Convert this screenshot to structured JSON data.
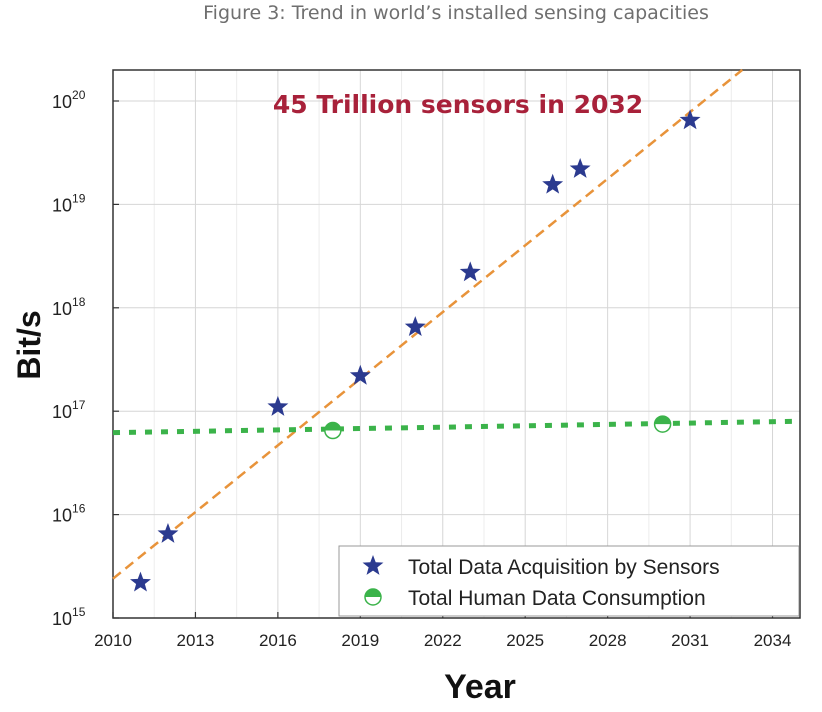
{
  "figure_title": "Figure 3: Trend in world’s installed sensing capacities",
  "chart_data": {
    "type": "scatter",
    "title": "",
    "xlabel": "Year",
    "ylabel": "Bit/s",
    "xlim": [
      2010,
      2035
    ],
    "ylim": [
      1000000000000000.0,
      2e+20
    ],
    "y_scale": "log",
    "grid": true,
    "x_ticks": [
      {
        "value": 2010,
        "label": "2010"
      },
      {
        "value": 2013,
        "label": "2013"
      },
      {
        "value": 2016,
        "label": "2016"
      },
      {
        "value": 2019,
        "label": "2019"
      },
      {
        "value": 2022,
        "label": "2022"
      },
      {
        "value": 2025,
        "label": "2025"
      },
      {
        "value": 2028,
        "label": "2028"
      },
      {
        "value": 2031,
        "label": "2031"
      },
      {
        "value": 2034,
        "label": "2034"
      }
    ],
    "y_ticks": [
      {
        "value": 1000000000000000.0,
        "base": "10",
        "exp": "15"
      },
      {
        "value": 1e+16,
        "base": "10",
        "exp": "16"
      },
      {
        "value": 1e+17,
        "base": "10",
        "exp": "17"
      },
      {
        "value": 1e+18,
        "base": "10",
        "exp": "18"
      },
      {
        "value": 1e+19,
        "base": "10",
        "exp": "19"
      },
      {
        "value": 1e+20,
        "base": "10",
        "exp": "20"
      }
    ],
    "annotation": "45 Trillion sensors in 2032",
    "legend_position": "bottom-right",
    "series": [
      {
        "name": "Total Data Acquisition by Sensors",
        "marker": "star",
        "color": "#2b3a8f",
        "points": [
          {
            "x": 2011,
            "y": 2200000000000000.0
          },
          {
            "x": 2012,
            "y": 6500000000000000.0
          },
          {
            "x": 2016,
            "y": 1.1e+17
          },
          {
            "x": 2019,
            "y": 2.2e+17
          },
          {
            "x": 2021,
            "y": 6.5e+17
          },
          {
            "x": 2023,
            "y": 2.2e+18
          },
          {
            "x": 2026,
            "y": 1.55e+19
          },
          {
            "x": 2027,
            "y": 2.2e+19
          },
          {
            "x": 2031,
            "y": 6.5e+19
          }
        ]
      },
      {
        "name": "Total Human Data Consumption",
        "marker": "half-circle",
        "color": "#3bb34a",
        "points": [
          {
            "x": 2018,
            "y": 6.5e+16
          },
          {
            "x": 2030,
            "y": 7.5e+16
          }
        ]
      }
    ],
    "trend_lines": [
      {
        "name": "sensors-trend",
        "style": "dashed",
        "color": "#e8933a",
        "points": [
          {
            "x": 2010,
            "y": 2400000000000000.0
          },
          {
            "x": 2032.9,
            "y": 2e+20
          }
        ]
      },
      {
        "name": "human-trend",
        "style": "dotted",
        "color": "#3bb34a",
        "points": [
          {
            "x": 2010,
            "y": 6.2e+16
          },
          {
            "x": 2035,
            "y": 8e+16
          }
        ]
      }
    ]
  }
}
